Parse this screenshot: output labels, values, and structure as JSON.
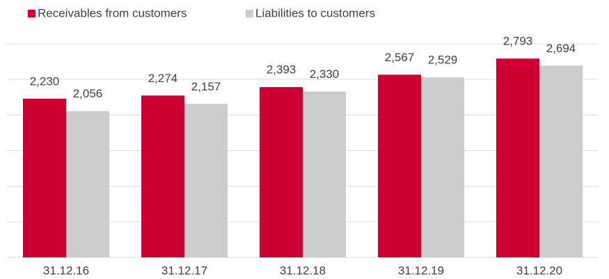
{
  "chart_data": {
    "type": "bar",
    "categories": [
      "31.12.16",
      "31.12.17",
      "31.12.18",
      "31.12.19",
      "31.12.20"
    ],
    "series": [
      {
        "name": "Receivables from customers",
        "color": "#cc0033",
        "values": [
          2230,
          2274,
          2393,
          2567,
          2793
        ],
        "value_labels": [
          "2,230",
          "2,274",
          "2,393",
          "2,567",
          "2,793"
        ]
      },
      {
        "name": "Liabilities to customers",
        "color": "#cccccc",
        "values": [
          2056,
          2157,
          2330,
          2529,
          2694
        ],
        "value_labels": [
          "2,056",
          "2,157",
          "2,330",
          "2,529",
          "2,694"
        ]
      }
    ],
    "ylim": [
      0,
      3000
    ],
    "yticks": [
      0,
      500,
      1000,
      1500,
      2000,
      2500,
      3000
    ],
    "grid": true,
    "legend": "top"
  }
}
